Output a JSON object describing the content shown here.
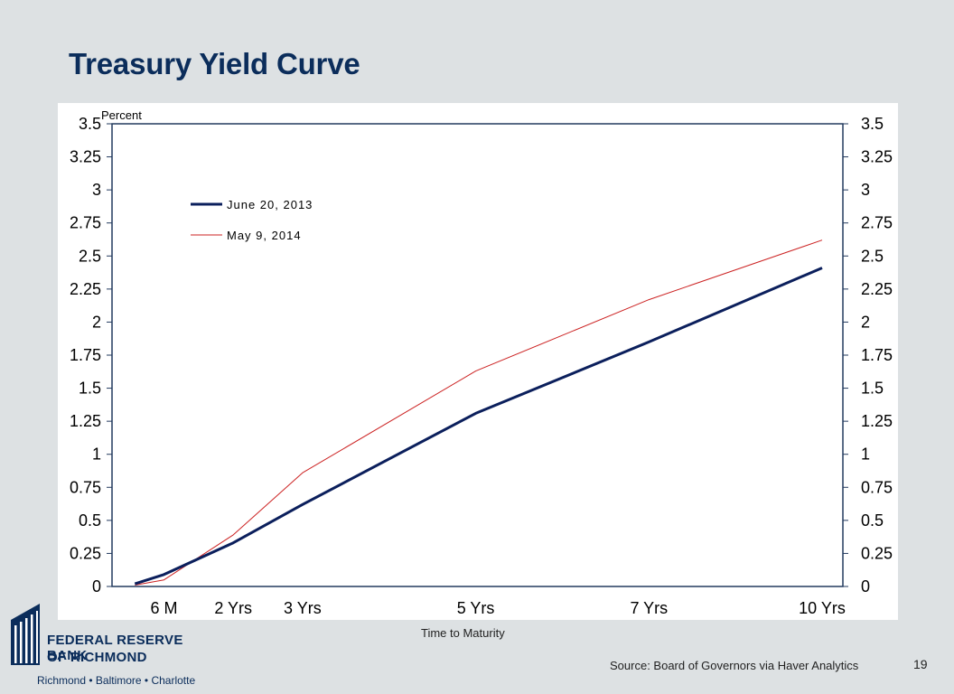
{
  "slide": {
    "title": "Treasury Yield Curve",
    "page_number": "19",
    "source": "Source: Board of Governors via Haver Analytics"
  },
  "logo": {
    "line1": "FEDERAL RESERVE BANK",
    "line2": "OF RICHMOND",
    "cities": "Richmond • Baltimore • Charlotte"
  },
  "colors": {
    "title": "#0b2d5b",
    "background": "#dde1e3",
    "series1": "#0b1f5c",
    "series2": "#cc2222",
    "axis": "#223a5e"
  },
  "chart_data": {
    "type": "line",
    "ylabel": "Percent",
    "xlabel": "Time to Maturity",
    "ylim": [
      0,
      3.5
    ],
    "y_ticks": [
      "0",
      "0.25",
      "0.5",
      "0.75",
      "1",
      "1.25",
      "1.5",
      "1.75",
      "2",
      "2.25",
      "2.5",
      "2.75",
      "3",
      "3.25",
      "3.5"
    ],
    "x_range_years": [
      -0.25,
      10.3
    ],
    "x_ticks": [
      {
        "label": "6 M",
        "x": 0.5
      },
      {
        "label": "2 Yrs",
        "x": 1.5
      },
      {
        "label": "3 Yrs",
        "x": 2.5
      },
      {
        "label": "5 Yrs",
        "x": 5
      },
      {
        "label": "7 Yrs",
        "x": 7.5
      },
      {
        "label": "10 Yrs",
        "x": 10
      }
    ],
    "legend_position": "top-left",
    "grid": false,
    "series": [
      {
        "name": "June 20, 2013",
        "color": "#0b1f5c",
        "points": [
          [
            0.08,
            0.02
          ],
          [
            0.5,
            0.09
          ],
          [
            1.5,
            0.33
          ],
          [
            2.5,
            0.62
          ],
          [
            5,
            1.31
          ],
          [
            7.5,
            1.85
          ],
          [
            10,
            2.41
          ]
        ]
      },
      {
        "name": "May 9, 2014",
        "color": "#cc2222",
        "points": [
          [
            0.08,
            0.01
          ],
          [
            0.5,
            0.05
          ],
          [
            1.5,
            0.39
          ],
          [
            2.5,
            0.86
          ],
          [
            5,
            1.63
          ],
          [
            7.5,
            2.17
          ],
          [
            10,
            2.62
          ]
        ]
      }
    ]
  }
}
